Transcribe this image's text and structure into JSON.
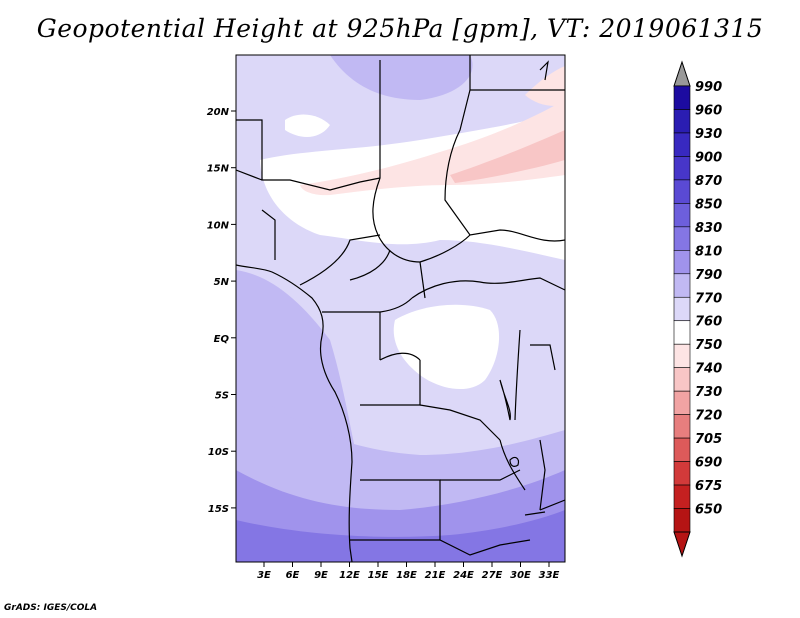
{
  "title": "Geopotential Height at 925hPa [gpm], VT: 2019061315",
  "credit": "GrADS: IGES/COLA",
  "map": {
    "x_ticks": [
      "3E",
      "6E",
      "9E",
      "12E",
      "15E",
      "18E",
      "21E",
      "24E",
      "27E",
      "30E",
      "33E"
    ],
    "y_ticks": [
      "20N",
      "15N",
      "10N",
      "5N",
      "EQ",
      "5S",
      "10S",
      "15S"
    ]
  },
  "colorbar": {
    "levels": [
      "990",
      "960",
      "930",
      "900",
      "870",
      "850",
      "830",
      "810",
      "790",
      "770",
      "760",
      "750",
      "740",
      "730",
      "720",
      "705",
      "690",
      "675",
      "650"
    ],
    "colors": [
      "#1c0ba0",
      "#2a1db2",
      "#3829c0",
      "#4736c9",
      "#5a4ad4",
      "#6d5fdc",
      "#8476e4",
      "#a093ec",
      "#c1b9f3",
      "#dcd8f8",
      "#ffffff",
      "#fde4e4",
      "#f8c6c6",
      "#f1a3a3",
      "#e77e7e",
      "#dd5a5a",
      "#d23a3a",
      "#c42020",
      "#b51414"
    ],
    "top_arrow_color": "#999999",
    "bottom_arrow_color": "#b51414"
  },
  "field_colors": {
    "pale_lavender": "#dcd8f8",
    "light_lavender": "#c1b9f3",
    "mid_lavender": "#a093ec",
    "deep_lavender": "#8476e4",
    "darker_lavender": "#6d5fdc",
    "white": "#ffffff",
    "pink_light": "#fde4e4",
    "pink": "#f8c6c6"
  }
}
